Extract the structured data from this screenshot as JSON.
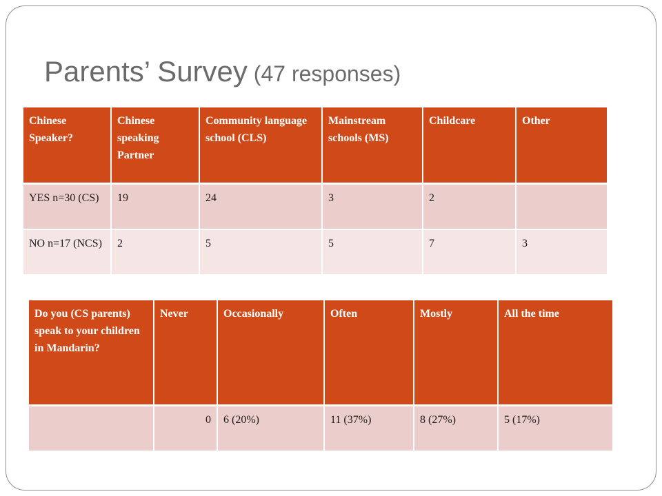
{
  "title": {
    "main": "Parents’ Survey",
    "sub": " (47 responses)"
  },
  "table1": {
    "headers": [
      "Chinese Speaker?",
      "Chinese speaking Partner",
      "Community language school (CLS)",
      "Mainstream schools (MS)",
      "Childcare",
      "Other"
    ],
    "rows": [
      [
        "YES n=30 (CS)",
        "19",
        "24",
        "3",
        "2",
        ""
      ],
      [
        "NO n=17 (NCS)",
        "2",
        "5",
        "5",
        "7",
        "3"
      ]
    ]
  },
  "table2": {
    "headers": [
      "Do you (CS parents) speak to your children in Mandarin?",
      "Never",
      "Occasionally",
      "Often",
      "Mostly",
      "All the time"
    ],
    "rows": [
      [
        "",
        "0",
        "6 (20%)",
        "11 (37%)",
        "8 (27%)",
        "5 (17%)"
      ]
    ]
  },
  "colors": {
    "header_bg": "#d04a19",
    "row_odd_bg": "#ebcecb",
    "row_even_bg": "#f5e6e5",
    "title_color": "#6b6b6b",
    "frame_border": "#8c8c8c"
  }
}
